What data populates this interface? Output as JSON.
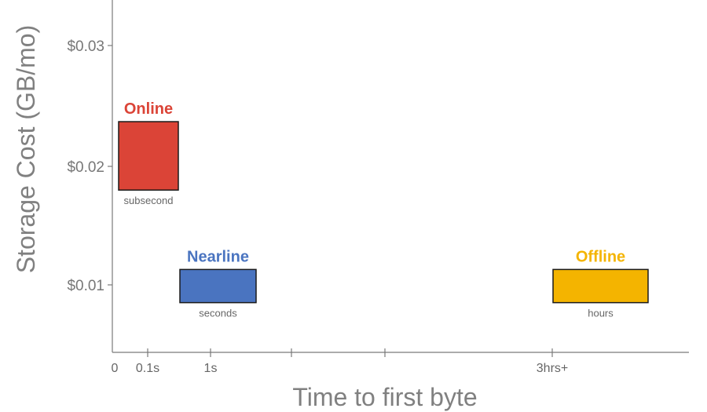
{
  "chart_data": {
    "type": "scatter",
    "ylabel": "Storage Cost (GB/mo)",
    "xlabel": "Time to first byte",
    "y_ticks": [
      "$0.03",
      "$0.02",
      "$0.01"
    ],
    "x_ticks": [
      "0",
      "0.1s",
      "1s",
      "",
      "",
      "3hrs+"
    ],
    "ylim": [
      0.0,
      0.036
    ],
    "series": [
      {
        "name": "Online",
        "latency": "subsecond",
        "cost_range": [
          0.018,
          0.0237
        ],
        "color": "#db4437"
      },
      {
        "name": "Nearline",
        "latency": "seconds",
        "cost_range": [
          0.0085,
          0.0113
        ],
        "color": "#4a74c0"
      },
      {
        "name": "Offline",
        "latency": "hours",
        "cost_range": [
          0.0085,
          0.0113
        ],
        "color": "#f4b400"
      }
    ]
  }
}
